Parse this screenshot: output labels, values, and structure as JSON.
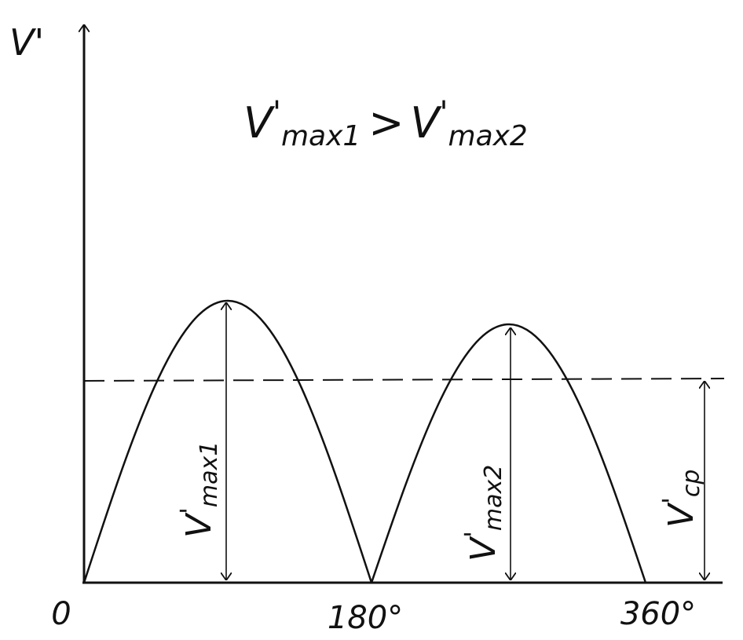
{
  "axis": {
    "y_label": "V'",
    "x_labels": [
      "0",
      "180°",
      "360°"
    ]
  },
  "title": {
    "left": {
      "base": "V",
      "prime": "'",
      "sub": "max1"
    },
    "operator": ">",
    "right": {
      "base": "V",
      "prime": "'",
      "sub": "max2"
    }
  },
  "labels": [
    {
      "base": "V",
      "prime": "'",
      "sub": "max1"
    },
    {
      "base": "V",
      "prime": "'",
      "sub": "max2"
    },
    {
      "base": "V",
      "prime": "'",
      "sub": "cp"
    }
  ]
}
